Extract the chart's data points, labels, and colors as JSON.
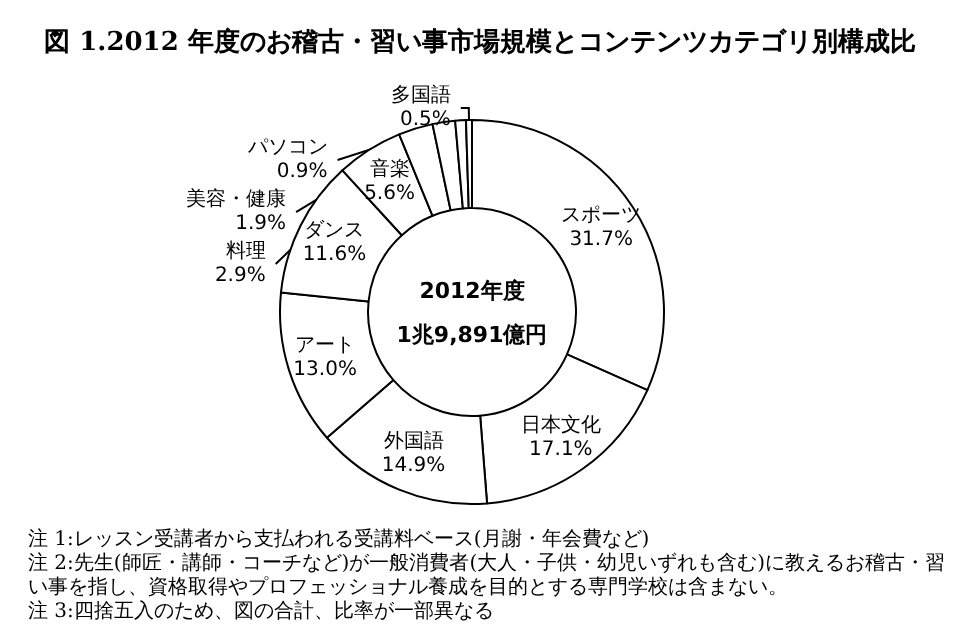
{
  "chart_data": {
    "type": "donut",
    "title": "図 1.2012 年度のお稽古・習い事市場規模とコンテンツカテゴリ別構成比",
    "categories": [
      "スポーツ",
      "日本文化",
      "外国語",
      "アート",
      "ダンス",
      "音楽",
      "料理",
      "美容・健康",
      "パソコン",
      "多国語"
    ],
    "values": [
      31.7,
      17.1,
      14.9,
      13.0,
      11.6,
      5.6,
      2.9,
      1.9,
      0.9,
      0.5
    ],
    "value_labels": [
      "31.7%",
      "17.1%",
      "14.9%",
      "13.0%",
      "11.6%",
      "5.6%",
      "2.9%",
      "1.9%",
      "0.9%",
      "0.5%"
    ],
    "colors": [
      "#ffffff",
      "#ffffff",
      "#ffffff",
      "#ffffff",
      "#ffffff",
      "#ffffff",
      "#ffffff",
      "#ffffff",
      "#ffffff",
      "#ffffff"
    ],
    "legend": false,
    "annotations": [
      "2012年度",
      "1兆9,891億円",
      "注 1:レッスン受講者から支払われる受講料ベース(月謝・年会費など)",
      "注 2:先生(師匠・講師・コーチなど)が一般消費者(大人・子供・幼児いずれも含む)に教えるお稽古・習い事を指し、資格取得やプロフェッショナル養成を目的とする専門学校は含まない。",
      "注 3:四捨五入のため、図の合計、比率が一部異なる"
    ]
  }
}
